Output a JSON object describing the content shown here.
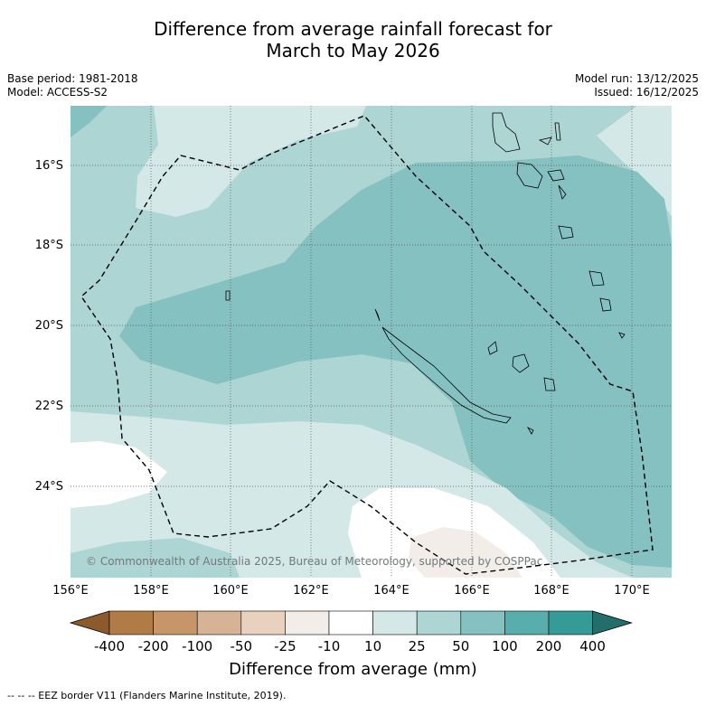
{
  "title_line1": "Difference from average rainfall forecast for",
  "title_line2": "March to May 2026",
  "base_period": "Base period: 1981-2018",
  "model": "Model: ACCESS-S2",
  "model_run": "Model run: 13/12/2025",
  "issued": "Issued: 16/12/2025",
  "copyright": "© Commonwealth of Australia 2025, Bureau of Meteorology, supported by COSPPac",
  "lat_labels": [
    "16°S",
    "18°S",
    "20°S",
    "22°S",
    "24°S"
  ],
  "lon_labels": [
    "156°E",
    "158°E",
    "160°E",
    "162°E",
    "164°E",
    "166°E",
    "168°E",
    "170°E"
  ],
  "colorbar": {
    "labels": [
      "-400",
      "-200",
      "-100",
      "-50",
      "-25",
      "-10",
      "10",
      "25",
      "50",
      "100",
      "200",
      "400"
    ],
    "colors": [
      "#8c5a2b",
      "#b07b45",
      "#c69668",
      "#d6b394",
      "#e8d2bf",
      "#f2ede8",
      "#ffffff",
      "#d4e8e7",
      "#acd5d4",
      "#84c1c0",
      "#57aeac",
      "#369a97",
      "#236e6c"
    ],
    "title": "Difference from average (mm)"
  },
  "footer": "-- -- -- EEZ border V11 (Flanders Marine Institute, 2019).",
  "colors": {
    "deep": "#84c1c0",
    "mid": "#acd5d4",
    "light": "#d4e8e7",
    "neutral": "#ffffff",
    "dry": "#f2ede8"
  }
}
